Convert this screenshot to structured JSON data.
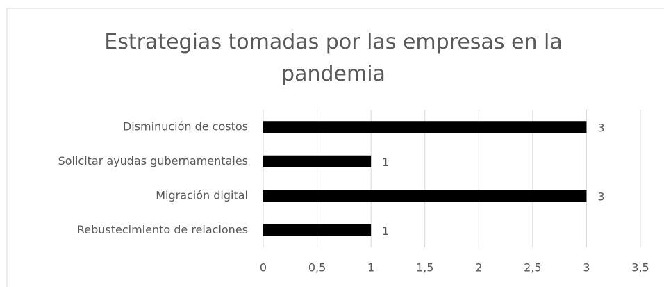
{
  "chart_data": {
    "type": "bar",
    "orientation": "horizontal",
    "title": "Estrategias tomadas por las empresas en la pandemia",
    "categories": [
      "Disminución de costos",
      "Solicitar ayudas gubernamentales",
      "Migración digital",
      "Rebustecimiento de relaciones"
    ],
    "values": [
      3,
      1,
      3,
      1
    ],
    "color": "#000000",
    "xlim": [
      0,
      3.5
    ],
    "xticks": [
      0,
      {
        "value": 0.5,
        "label": "0,5"
      },
      1,
      {
        "value": 1.5,
        "label": "1,5"
      },
      2,
      {
        "value": 2.5,
        "label": "2,5"
      },
      3,
      {
        "value": 3.5,
        "label": "3,5"
      }
    ],
    "grid": true
  }
}
